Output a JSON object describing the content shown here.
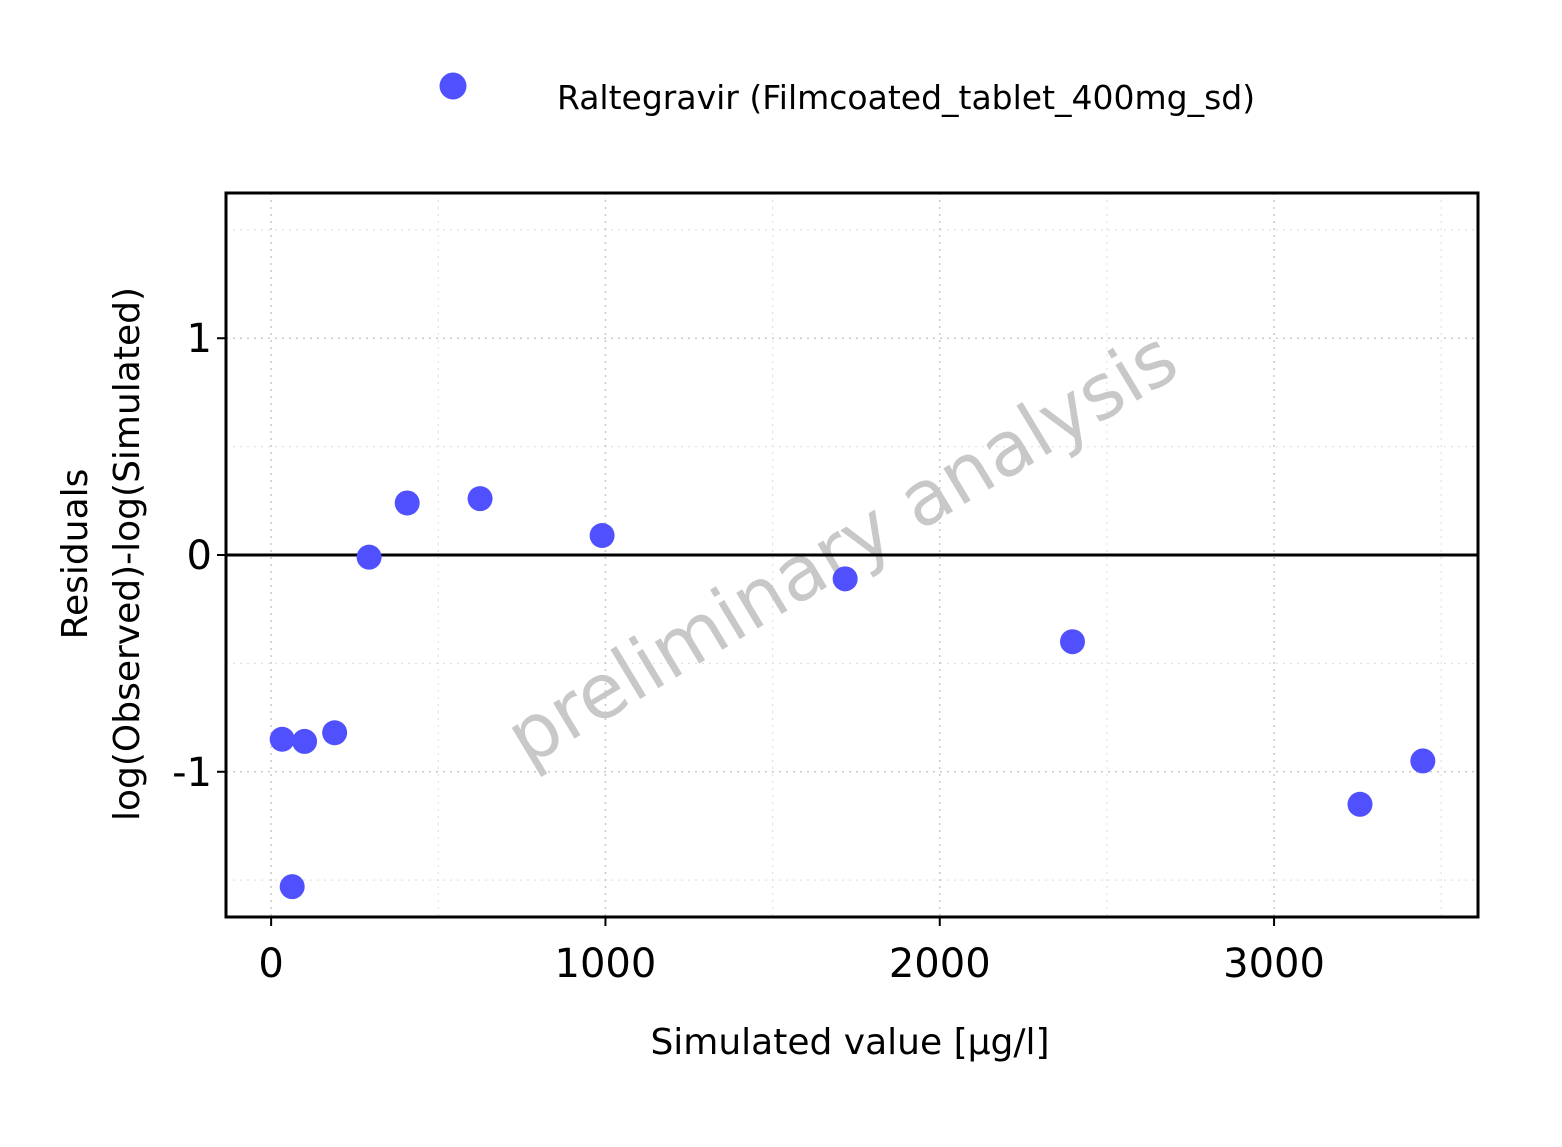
{
  "chart_data": {
    "type": "scatter",
    "title": "",
    "xlabel": "Simulated value [µg/l]",
    "ylabel_line1": "Residuals",
    "ylabel_line2": "log(Observed)-log(Simulated)",
    "xlim": [
      -135,
      3610
    ],
    "ylim": [
      -1.67,
      1.67
    ],
    "x_ticks": [
      0,
      1000,
      2000,
      3000
    ],
    "x_tick_labels": [
      "0",
      "1000",
      "2000",
      "3000"
    ],
    "x_minor_ticks": [
      500,
      1500,
      2500,
      3500
    ],
    "y_ticks": [
      -1,
      0,
      1
    ],
    "y_tick_labels": [
      "-1",
      "0",
      "1"
    ],
    "y_minor_ticks": [
      -1.5,
      -0.5,
      0.5,
      1.5
    ],
    "reference_line_y": 0,
    "legend": {
      "position": "top",
      "entries": [
        "Raltegravir (Filmcoated_tablet_400mg_sd)"
      ]
    },
    "watermark": "preliminary analysis",
    "series": [
      {
        "name": "Raltegravir (Filmcoated_tablet_400mg_sd)",
        "color": "#5050FF",
        "points": [
          {
            "x": 33,
            "y": -0.85
          },
          {
            "x": 63,
            "y": -1.53
          },
          {
            "x": 100,
            "y": -0.86
          },
          {
            "x": 190,
            "y": -0.82
          },
          {
            "x": 293,
            "y": -0.01
          },
          {
            "x": 407,
            "y": 0.24
          },
          {
            "x": 625,
            "y": 0.26
          },
          {
            "x": 990,
            "y": 0.09
          },
          {
            "x": 1717,
            "y": -0.11
          },
          {
            "x": 2397,
            "y": -0.4
          },
          {
            "x": 3257,
            "y": -1.15
          },
          {
            "x": 3445,
            "y": -0.95
          }
        ]
      }
    ]
  }
}
